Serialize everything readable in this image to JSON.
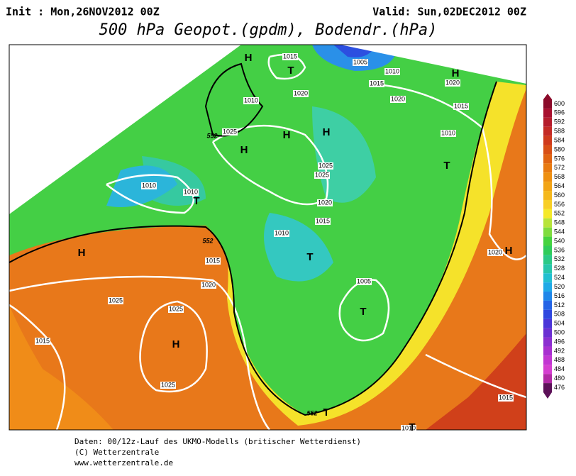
{
  "header": {
    "init": "Init : Mon,26NOV2012 00Z",
    "valid": "Valid: Sun,02DEC2012 00Z",
    "title": "500 hPa Geopot.(gpdm), Bodendr.(hPa)"
  },
  "legend": {
    "levels": [
      {
        "label": "600",
        "color": "#8b0a2a"
      },
      {
        "label": "596",
        "color": "#a8102f"
      },
      {
        "label": "592",
        "color": "#b51c2c"
      },
      {
        "label": "588",
        "color": "#c42a25"
      },
      {
        "label": "584",
        "color": "#cf3a1c"
      },
      {
        "label": "580",
        "color": "#d84f16"
      },
      {
        "label": "576",
        "color": "#e06412"
      },
      {
        "label": "572",
        "color": "#e87a10"
      },
      {
        "label": "568",
        "color": "#ee8f10"
      },
      {
        "label": "564",
        "color": "#f2a415"
      },
      {
        "label": "560",
        "color": "#f5b81c"
      },
      {
        "label": "556",
        "color": "#f8cf26"
      },
      {
        "label": "552",
        "color": "#f5e92a"
      },
      {
        "label": "548",
        "color": "#b7e43a"
      },
      {
        "label": "544",
        "color": "#7fdc3e"
      },
      {
        "label": "540",
        "color": "#45d33f"
      },
      {
        "label": "536",
        "color": "#2fcc5a"
      },
      {
        "label": "532",
        "color": "#2bc986"
      },
      {
        "label": "528",
        "color": "#28c6aa"
      },
      {
        "label": "524",
        "color": "#22bfd0"
      },
      {
        "label": "520",
        "color": "#1fa9e6"
      },
      {
        "label": "516",
        "color": "#1f86e9"
      },
      {
        "label": "512",
        "color": "#2464e6"
      },
      {
        "label": "508",
        "color": "#2f47df"
      },
      {
        "label": "504",
        "color": "#4a35d8"
      },
      {
        "label": "500",
        "color": "#6a2fd2"
      },
      {
        "label": "496",
        "color": "#8b2ed0"
      },
      {
        "label": "492",
        "color": "#a82fd0"
      },
      {
        "label": "488",
        "color": "#c236d2"
      },
      {
        "label": "484",
        "color": "#d53fd0"
      },
      {
        "label": "480",
        "color": "#b12aa5"
      },
      {
        "label": "476",
        "color": "#5c1158"
      }
    ]
  },
  "map": {
    "isobar_labels": [
      "1015",
      "1005",
      "1010",
      "1015",
      "1020",
      "1020",
      "1020",
      "1010",
      "1015",
      "1025",
      "1010",
      "1025",
      "1025",
      "1010",
      "1010",
      "1020",
      "1015",
      "1010",
      "1015",
      "1020",
      "1020",
      "1025",
      "1005",
      "1025",
      "1015",
      "1025",
      "1015",
      "1010"
    ],
    "contour_labels": [
      "552",
      "552",
      "552"
    ],
    "systems": [
      "H",
      "T",
      "H",
      "H",
      "H",
      "H",
      "T",
      "T",
      "H",
      "T",
      "H",
      "T",
      "H",
      "T",
      "T"
    ]
  },
  "footer": {
    "line1": "Daten: 00/12z-Lauf des UKMO-Modells (britischer Wetterdienst)",
    "line2": "(C) Wetterzentrale",
    "line3": "www.wetterzentrale.de"
  }
}
